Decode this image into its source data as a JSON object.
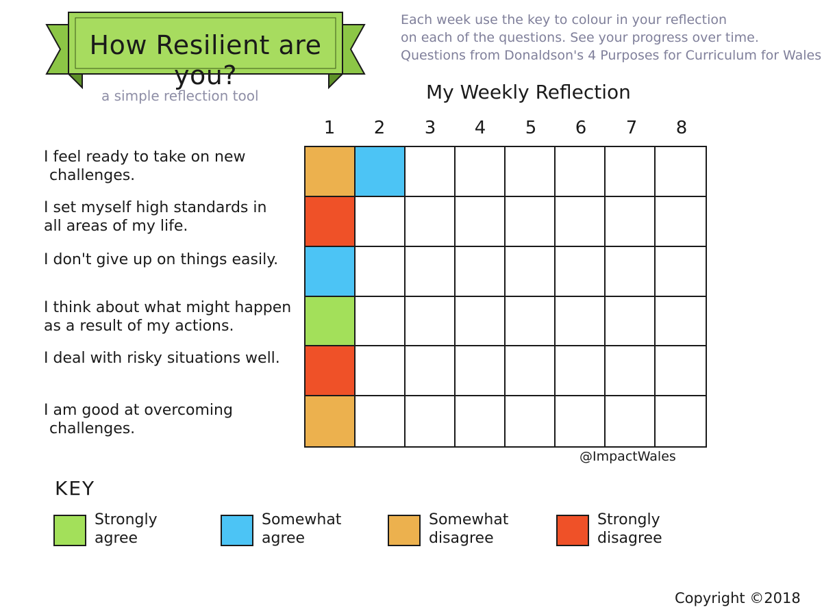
{
  "title": "How Resilient are you?",
  "subtitle": "a simple reflection tool",
  "instructions": [
    "Each week use the key to colour in your reflection",
    "on each of the questions. See your progress over time.",
    "Questions from Donaldson's 4 Purposes for Curriculum for Wales."
  ],
  "grid_heading": "My Weekly Reflection",
  "weeks": [
    "1",
    "2",
    "3",
    "4",
    "5",
    "6",
    "7",
    "8"
  ],
  "questions": [
    {
      "lines": [
        "I feel ready to take on new",
        "challenges."
      ]
    },
    {
      "lines": [
        "I set myself high standards in",
        "all areas of my life."
      ]
    },
    {
      "lines": [
        "I don't give up on things easily."
      ]
    },
    {
      "lines": [
        "I think about what might happen",
        "as a result of my actions."
      ]
    },
    {
      "lines": [
        "I deal with risky situations well."
      ]
    },
    {
      "lines": [
        "I am good at overcoming",
        "challenges."
      ]
    }
  ],
  "responses": [
    [
      "somewhat_disagree",
      "somewhat_agree",
      null,
      null,
      null,
      null,
      null,
      null
    ],
    [
      "strongly_disagree",
      null,
      null,
      null,
      null,
      null,
      null,
      null
    ],
    [
      "somewhat_agree",
      null,
      null,
      null,
      null,
      null,
      null,
      null
    ],
    [
      "strongly_agree",
      null,
      null,
      null,
      null,
      null,
      null,
      null
    ],
    [
      "strongly_disagree",
      null,
      null,
      null,
      null,
      null,
      null,
      null
    ],
    [
      "somewhat_disagree",
      null,
      null,
      null,
      null,
      null,
      null,
      null
    ]
  ],
  "handle": "@ImpactWales",
  "key": {
    "title": "KEY",
    "items": [
      {
        "id": "strongly_agree",
        "lines": [
          "Strongly",
          "agree"
        ],
        "color": "#a3e05a"
      },
      {
        "id": "somewhat_agree",
        "lines": [
          "Somewhat",
          "agree"
        ],
        "color": "#4cc4f5"
      },
      {
        "id": "somewhat_disagree",
        "lines": [
          "Somewhat",
          "disagree"
        ],
        "color": "#ecb14e"
      },
      {
        "id": "strongly_disagree",
        "lines": [
          "Strongly",
          "disagree"
        ],
        "color": "#ef5128"
      }
    ]
  },
  "copyright": "Copyright ©2018",
  "colors": {
    "banner": "#9ad04f",
    "banner_dark": "#6fa835",
    "ink": "#1a1a1a",
    "note": "#7f7f9a"
  }
}
